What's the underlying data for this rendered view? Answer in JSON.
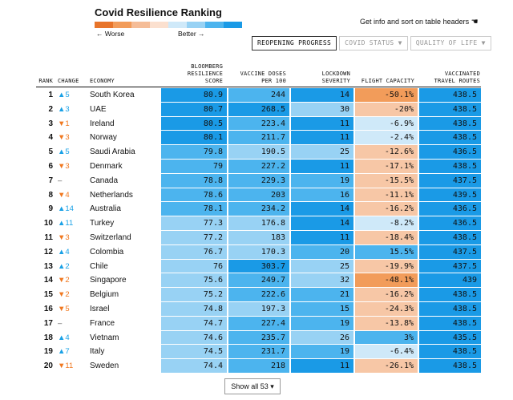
{
  "title": "Covid Resilience Ranking",
  "legend": {
    "worse": "← Worse",
    "better": "Better →",
    "colors": [
      "#e8742a",
      "#f29c5a",
      "#f5bd98",
      "#fbe0cf",
      "#cfe9f9",
      "#98d2f4",
      "#4cb4ee",
      "#1a9ae6"
    ]
  },
  "info_text": "Get info and sort on table headers",
  "tabs": [
    {
      "label": "REOPENING PROGRESS",
      "active": true
    },
    {
      "label": "COVID STATUS ▼",
      "active": false
    },
    {
      "label": "QUALITY OF LIFE ▼",
      "active": false
    }
  ],
  "headers": {
    "rank": "RANK",
    "change": "CHANGE",
    "economy": "ECONOMY",
    "score": [
      "BLOOMBERG",
      "RESILIENCE",
      "SCORE"
    ],
    "vaccine": [
      "VACCINE DOSES",
      "PER 100"
    ],
    "lockdown": [
      "LOCKDOWN",
      "SEVERITY"
    ],
    "flight": [
      "FLIGHT CAPACITY"
    ],
    "routes": [
      "VACCINATED",
      "TRAVEL ROUTES"
    ]
  },
  "rows": [
    {
      "rank": "1",
      "change": "▲5",
      "dir": "up",
      "economy": "South Korea",
      "score": "80.9",
      "vaccine": "244",
      "lockdown": "14",
      "flight": "-50.1%",
      "routes": "438.5"
    },
    {
      "rank": "2",
      "change": "▲3",
      "dir": "up",
      "economy": "UAE",
      "score": "80.7",
      "vaccine": "268.5",
      "lockdown": "30",
      "flight": "-20%",
      "routes": "438.5"
    },
    {
      "rank": "3",
      "change": "▼1",
      "dir": "down",
      "economy": "Ireland",
      "score": "80.5",
      "vaccine": "223.4",
      "lockdown": "11",
      "flight": "-6.9%",
      "routes": "438.5"
    },
    {
      "rank": "4",
      "change": "▼3",
      "dir": "down",
      "economy": "Norway",
      "score": "80.1",
      "vaccine": "211.7",
      "lockdown": "11",
      "flight": "-2.4%",
      "routes": "438.5"
    },
    {
      "rank": "5",
      "change": "▲5",
      "dir": "up",
      "economy": "Saudi Arabia",
      "score": "79.8",
      "vaccine": "190.5",
      "lockdown": "25",
      "flight": "-12.6%",
      "routes": "436.5"
    },
    {
      "rank": "6",
      "change": "▼3",
      "dir": "down",
      "economy": "Denmark",
      "score": "79",
      "vaccine": "227.2",
      "lockdown": "11",
      "flight": "-17.1%",
      "routes": "438.5"
    },
    {
      "rank": "7",
      "change": "–",
      "dir": "none",
      "economy": "Canada",
      "score": "78.8",
      "vaccine": "229.3",
      "lockdown": "19",
      "flight": "-15.5%",
      "routes": "437.5"
    },
    {
      "rank": "8",
      "change": "▼4",
      "dir": "down",
      "economy": "Netherlands",
      "score": "78.6",
      "vaccine": "203",
      "lockdown": "16",
      "flight": "-11.1%",
      "routes": "439.5"
    },
    {
      "rank": "9",
      "change": "▲14",
      "dir": "up",
      "economy": "Australia",
      "score": "78.1",
      "vaccine": "234.2",
      "lockdown": "14",
      "flight": "-16.2%",
      "routes": "436.5"
    },
    {
      "rank": "10",
      "change": "▲11",
      "dir": "up",
      "economy": "Turkey",
      "score": "77.3",
      "vaccine": "176.8",
      "lockdown": "14",
      "flight": "-8.2%",
      "routes": "436.5"
    },
    {
      "rank": "11",
      "change": "▼3",
      "dir": "down",
      "economy": "Switzerland",
      "score": "77.2",
      "vaccine": "183",
      "lockdown": "11",
      "flight": "-18.4%",
      "routes": "438.5"
    },
    {
      "rank": "12",
      "change": "▲4",
      "dir": "up",
      "economy": "Colombia",
      "score": "76.7",
      "vaccine": "170.3",
      "lockdown": "20",
      "flight": "15.5%",
      "routes": "437.5"
    },
    {
      "rank": "13",
      "change": "▲2",
      "dir": "up",
      "economy": "Chile",
      "score": "76",
      "vaccine": "303.7",
      "lockdown": "25",
      "flight": "-19.9%",
      "routes": "437.5"
    },
    {
      "rank": "14",
      "change": "▼2",
      "dir": "down",
      "economy": "Singapore",
      "score": "75.6",
      "vaccine": "249.7",
      "lockdown": "32",
      "flight": "-48.1%",
      "routes": "439"
    },
    {
      "rank": "15",
      "change": "▼2",
      "dir": "down",
      "economy": "Belgium",
      "score": "75.2",
      "vaccine": "222.6",
      "lockdown": "21",
      "flight": "-16.2%",
      "routes": "438.5"
    },
    {
      "rank": "16",
      "change": "▼5",
      "dir": "down",
      "economy": "Israel",
      "score": "74.8",
      "vaccine": "197.3",
      "lockdown": "15",
      "flight": "-24.3%",
      "routes": "438.5"
    },
    {
      "rank": "17",
      "change": "–",
      "dir": "none",
      "economy": "France",
      "score": "74.7",
      "vaccine": "227.4",
      "lockdown": "19",
      "flight": "-13.8%",
      "routes": "438.5"
    },
    {
      "rank": "18",
      "change": "▲4",
      "dir": "up",
      "economy": "Vietnam",
      "score": "74.6",
      "vaccine": "235.7",
      "lockdown": "26",
      "flight": "3%",
      "routes": "435.5"
    },
    {
      "rank": "19",
      "change": "▲7",
      "dir": "up",
      "economy": "Italy",
      "score": "74.5",
      "vaccine": "231.7",
      "lockdown": "19",
      "flight": "-6.4%",
      "routes": "438.5"
    },
    {
      "rank": "20",
      "change": "▼11",
      "dir": "down",
      "economy": "Sweden",
      "score": "74.4",
      "vaccine": "218",
      "lockdown": "11",
      "flight": "-26.1%",
      "routes": "438.5"
    }
  ],
  "show_all": "Show all 53 ▾"
}
